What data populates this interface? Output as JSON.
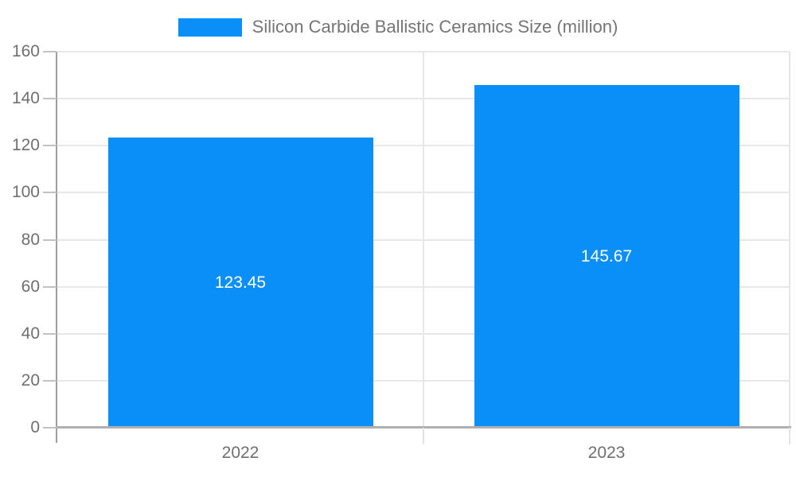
{
  "chart_data": {
    "type": "bar",
    "title": "Silicon Carbide Ballistic Ceramics Size (million)",
    "categories": [
      "2022",
      "2023"
    ],
    "series": [
      {
        "name": "Silicon Carbide Ballistic Ceramics Size (million)",
        "values": [
          123.45,
          145.67
        ]
      }
    ],
    "value_labels": [
      "123.45",
      "145.67"
    ],
    "xlabel": "",
    "ylabel": "",
    "ylim": [
      0,
      160
    ],
    "yticks": [
      0,
      20,
      40,
      60,
      80,
      100,
      120,
      140,
      160
    ],
    "grid": true,
    "legend_position": "top",
    "bar_color": "#0a8ff9",
    "value_label_color": "#ffffff",
    "axis_text_color": "#6f6f6f",
    "legend_text_color": "#757575",
    "background_color": "#ffffff"
  }
}
